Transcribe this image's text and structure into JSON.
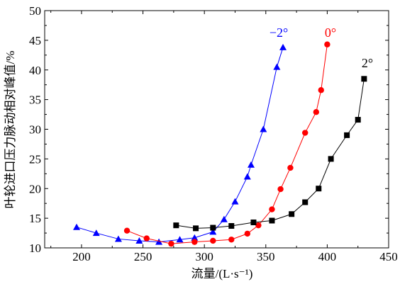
{
  "chart_data": {
    "type": "line",
    "xlabel": "流量/(L·s⁻¹)",
    "ylabel": "叶轮进口压力脉动相对峰值/%",
    "xlim": [
      170,
      450
    ],
    "ylim": [
      10,
      50
    ],
    "xticks": [
      200,
      250,
      300,
      350,
      400,
      450
    ],
    "yticks": [
      10,
      15,
      20,
      25,
      30,
      35,
      40,
      45,
      50
    ],
    "grid": false,
    "series": [
      {
        "name": "−2°",
        "color": "#0000ff",
        "marker": "triangle",
        "x": [
          196,
          212,
          230,
          247,
          263,
          280,
          292,
          307,
          316,
          325,
          335,
          338,
          348,
          359,
          364
        ],
        "y": [
          13.5,
          12.5,
          11.5,
          11.2,
          11.0,
          11.4,
          11.7,
          12.7,
          14.8,
          17.8,
          22.0,
          24.0,
          30.0,
          40.5,
          43.8
        ]
      },
      {
        "name": "0°",
        "color": "#ff0000",
        "marker": "circle",
        "x": [
          237,
          253,
          273,
          292,
          307,
          322,
          335,
          344,
          355,
          362,
          370,
          382,
          391,
          395,
          400
        ],
        "y": [
          12.9,
          11.6,
          10.7,
          11.0,
          11.2,
          11.4,
          12.4,
          13.8,
          16.5,
          19.9,
          23.5,
          29.4,
          32.9,
          36.6,
          44.3
        ]
      },
      {
        "name": "2°",
        "color": "#000000",
        "marker": "square",
        "x": [
          277,
          293,
          307,
          322,
          340,
          355,
          371,
          382,
          393,
          403,
          416,
          425,
          430
        ],
        "y": [
          13.8,
          13.3,
          13.4,
          13.7,
          14.3,
          14.6,
          15.7,
          17.7,
          20.0,
          25.0,
          29.0,
          31.6,
          38.5
        ]
      }
    ]
  }
}
